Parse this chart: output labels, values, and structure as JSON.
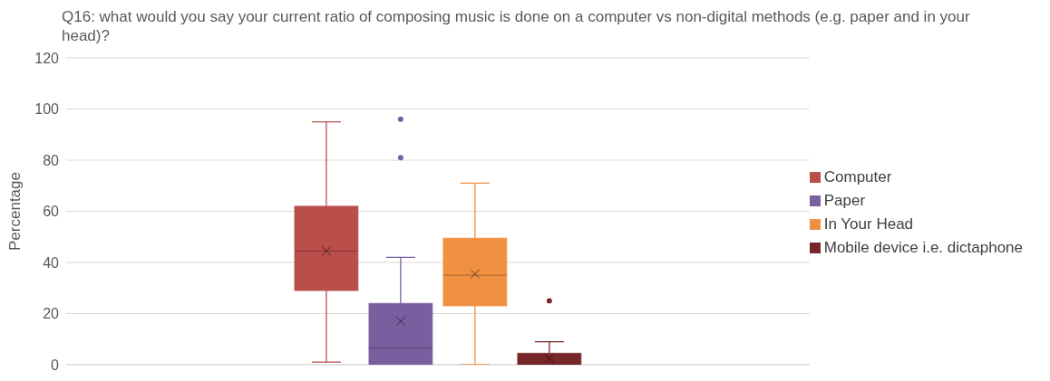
{
  "chart_data": {
    "type": "box",
    "title": "Q16: what would you say your current ratio of composing music is done on a computer vs non-digital methods (e.g. paper and in your head)?",
    "ylabel": "Percentage",
    "categories": [
      null
    ],
    "ylim": [
      0,
      120
    ],
    "yticks": [
      0,
      20,
      40,
      60,
      80,
      100,
      120
    ],
    "grid": "y",
    "legend": "right",
    "series": [
      {
        "name": "Computer",
        "color": "#b94e4a",
        "boxes": [
          {
            "low": 1,
            "q1": 29,
            "median": 44.5,
            "q3": 62,
            "high": 95,
            "mean": 44.5
          }
        ]
      },
      {
        "name": "Paper",
        "color": "#7a5fa0",
        "boxes": [
          {
            "low": 0,
            "q1": 0,
            "median": 6.5,
            "q3": 24,
            "high": 42,
            "mean": 17,
            "outliers": [
              96,
              81
            ]
          }
        ]
      },
      {
        "name": "In Your Head",
        "color": "#f09142",
        "boxes": [
          {
            "low": 0,
            "q1": 23,
            "median": 35,
            "q3": 49.5,
            "high": 71,
            "mean": 35.5
          }
        ]
      },
      {
        "name": "Mobile device i.e. dictaphone",
        "color": "#77262a",
        "boxes": [
          {
            "low": 0,
            "q1": 0,
            "median": 0,
            "q3": 4.5,
            "high": 9,
            "mean": 2.5,
            "outliers": [
              25
            ]
          }
        ]
      }
    ]
  }
}
